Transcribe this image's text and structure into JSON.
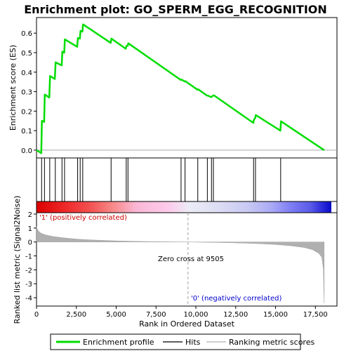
{
  "title": "Enrichment plot: GO_SPERM_EGG_RECOGNITION",
  "colors": {
    "profile": "#00dd00",
    "hits": "#000000",
    "metric": "#b0b0b0",
    "zero_cross": "#a0a0a0",
    "positive_label": "#cc0000",
    "negative_label": "#0000cc"
  },
  "chart_data": [
    {
      "type": "line",
      "name": "enrichment-plot",
      "ylabel": "Enrichment score (ES)",
      "xlim": [
        0,
        18500
      ],
      "ylim": [
        -0.04,
        0.68
      ],
      "yticks": [
        0.0,
        0.1,
        0.2,
        0.3,
        0.4,
        0.5,
        0.6
      ],
      "ytick_labels": [
        "0.0",
        "0.1",
        "0.2",
        "0.3",
        "0.4",
        "0.5",
        "0.6"
      ],
      "grid": false,
      "series": [
        {
          "name": "Enrichment profile",
          "x": [
            0,
            300,
            340,
            480,
            520,
            800,
            850,
            1150,
            1200,
            1580,
            1620,
            1740,
            1780,
            2550,
            2600,
            2720,
            2760,
            2880,
            2920,
            4650,
            4700,
            5600,
            5650,
            5720,
            5760,
            9050,
            9100,
            9300,
            9340,
            10100,
            10140,
            10700,
            10740,
            10960,
            11000,
            11080,
            11120,
            13600,
            13640,
            13720,
            13760,
            15300,
            15340,
            18050
          ],
          "y": [
            0.0,
            -0.015,
            0.15,
            0.145,
            0.285,
            0.27,
            0.38,
            0.365,
            0.45,
            0.435,
            0.505,
            0.5,
            0.568,
            0.53,
            0.575,
            0.572,
            0.612,
            0.608,
            0.645,
            0.55,
            0.572,
            0.52,
            0.535,
            0.535,
            0.548,
            0.36,
            0.362,
            0.352,
            0.354,
            0.31,
            0.312,
            0.28,
            0.28,
            0.272,
            0.274,
            0.28,
            0.282,
            0.14,
            0.155,
            0.165,
            0.18,
            0.1,
            0.148,
            0.0
          ]
        }
      ]
    },
    {
      "type": "scatter",
      "name": "hits",
      "series": [
        {
          "name": "Hits",
          "x": [
            320,
            500,
            830,
            1180,
            1600,
            1760,
            2580,
            2740,
            2900,
            4680,
            5630,
            5740,
            9070,
            9320,
            10120,
            10720,
            10980,
            11100,
            13620,
            13740,
            15320
          ]
        }
      ]
    },
    {
      "type": "area",
      "name": "ranked-list-metric",
      "ylabel": "Ranked list metric (Signal2Noise)",
      "xlabel": "Rank in Ordered Dataset",
      "xlim": [
        0,
        18500
      ],
      "ylim": [
        -4.6,
        2.1
      ],
      "xticks": [
        0,
        2500,
        5000,
        7500,
        10000,
        12500,
        15000,
        17500
      ],
      "xtick_labels": [
        "0",
        "2,500",
        "5,000",
        "7,500",
        "10,000",
        "12,500",
        "15,000",
        "17,500"
      ],
      "yticks": [
        2,
        1,
        0,
        -1,
        -2,
        -3,
        -4
      ],
      "ytick_labels": [
        "2",
        "1",
        "0",
        "-1",
        "-2",
        "-3",
        "-4"
      ],
      "series": [
        {
          "name": "Ranking metric scores",
          "x": [
            0,
            60,
            150,
            300,
            600,
            1000,
            1500,
            2000,
            2500,
            3000,
            4000,
            5000,
            6000,
            7000,
            8000,
            9000,
            9505,
            10000,
            11000,
            12000,
            13000,
            14000,
            15000,
            16000,
            16800,
            17300,
            17700,
            17900,
            18000,
            18050
          ],
          "y": [
            1.1,
            0.9,
            0.75,
            0.62,
            0.5,
            0.4,
            0.32,
            0.26,
            0.21,
            0.17,
            0.12,
            0.08,
            0.05,
            0.03,
            0.015,
            0.005,
            0.0,
            -0.01,
            -0.03,
            -0.05,
            -0.08,
            -0.12,
            -0.18,
            -0.28,
            -0.4,
            -0.55,
            -0.8,
            -1.1,
            -1.9,
            -4.4
          ]
        }
      ],
      "annotations": {
        "zero_cross": "Zero cross at 9505",
        "zero_cross_rank": 9505,
        "positive": "'1' (positively correlated)",
        "negative": "'0' (negatively correlated)"
      }
    }
  ],
  "legend": {
    "items": [
      {
        "label": "Enrichment profile",
        "color": "#00dd00",
        "kind": "thick-line"
      },
      {
        "label": "Hits",
        "color": "#000000",
        "kind": "line"
      },
      {
        "label": "Ranking metric scores",
        "color": "#b0b0b0",
        "kind": "line"
      }
    ]
  }
}
